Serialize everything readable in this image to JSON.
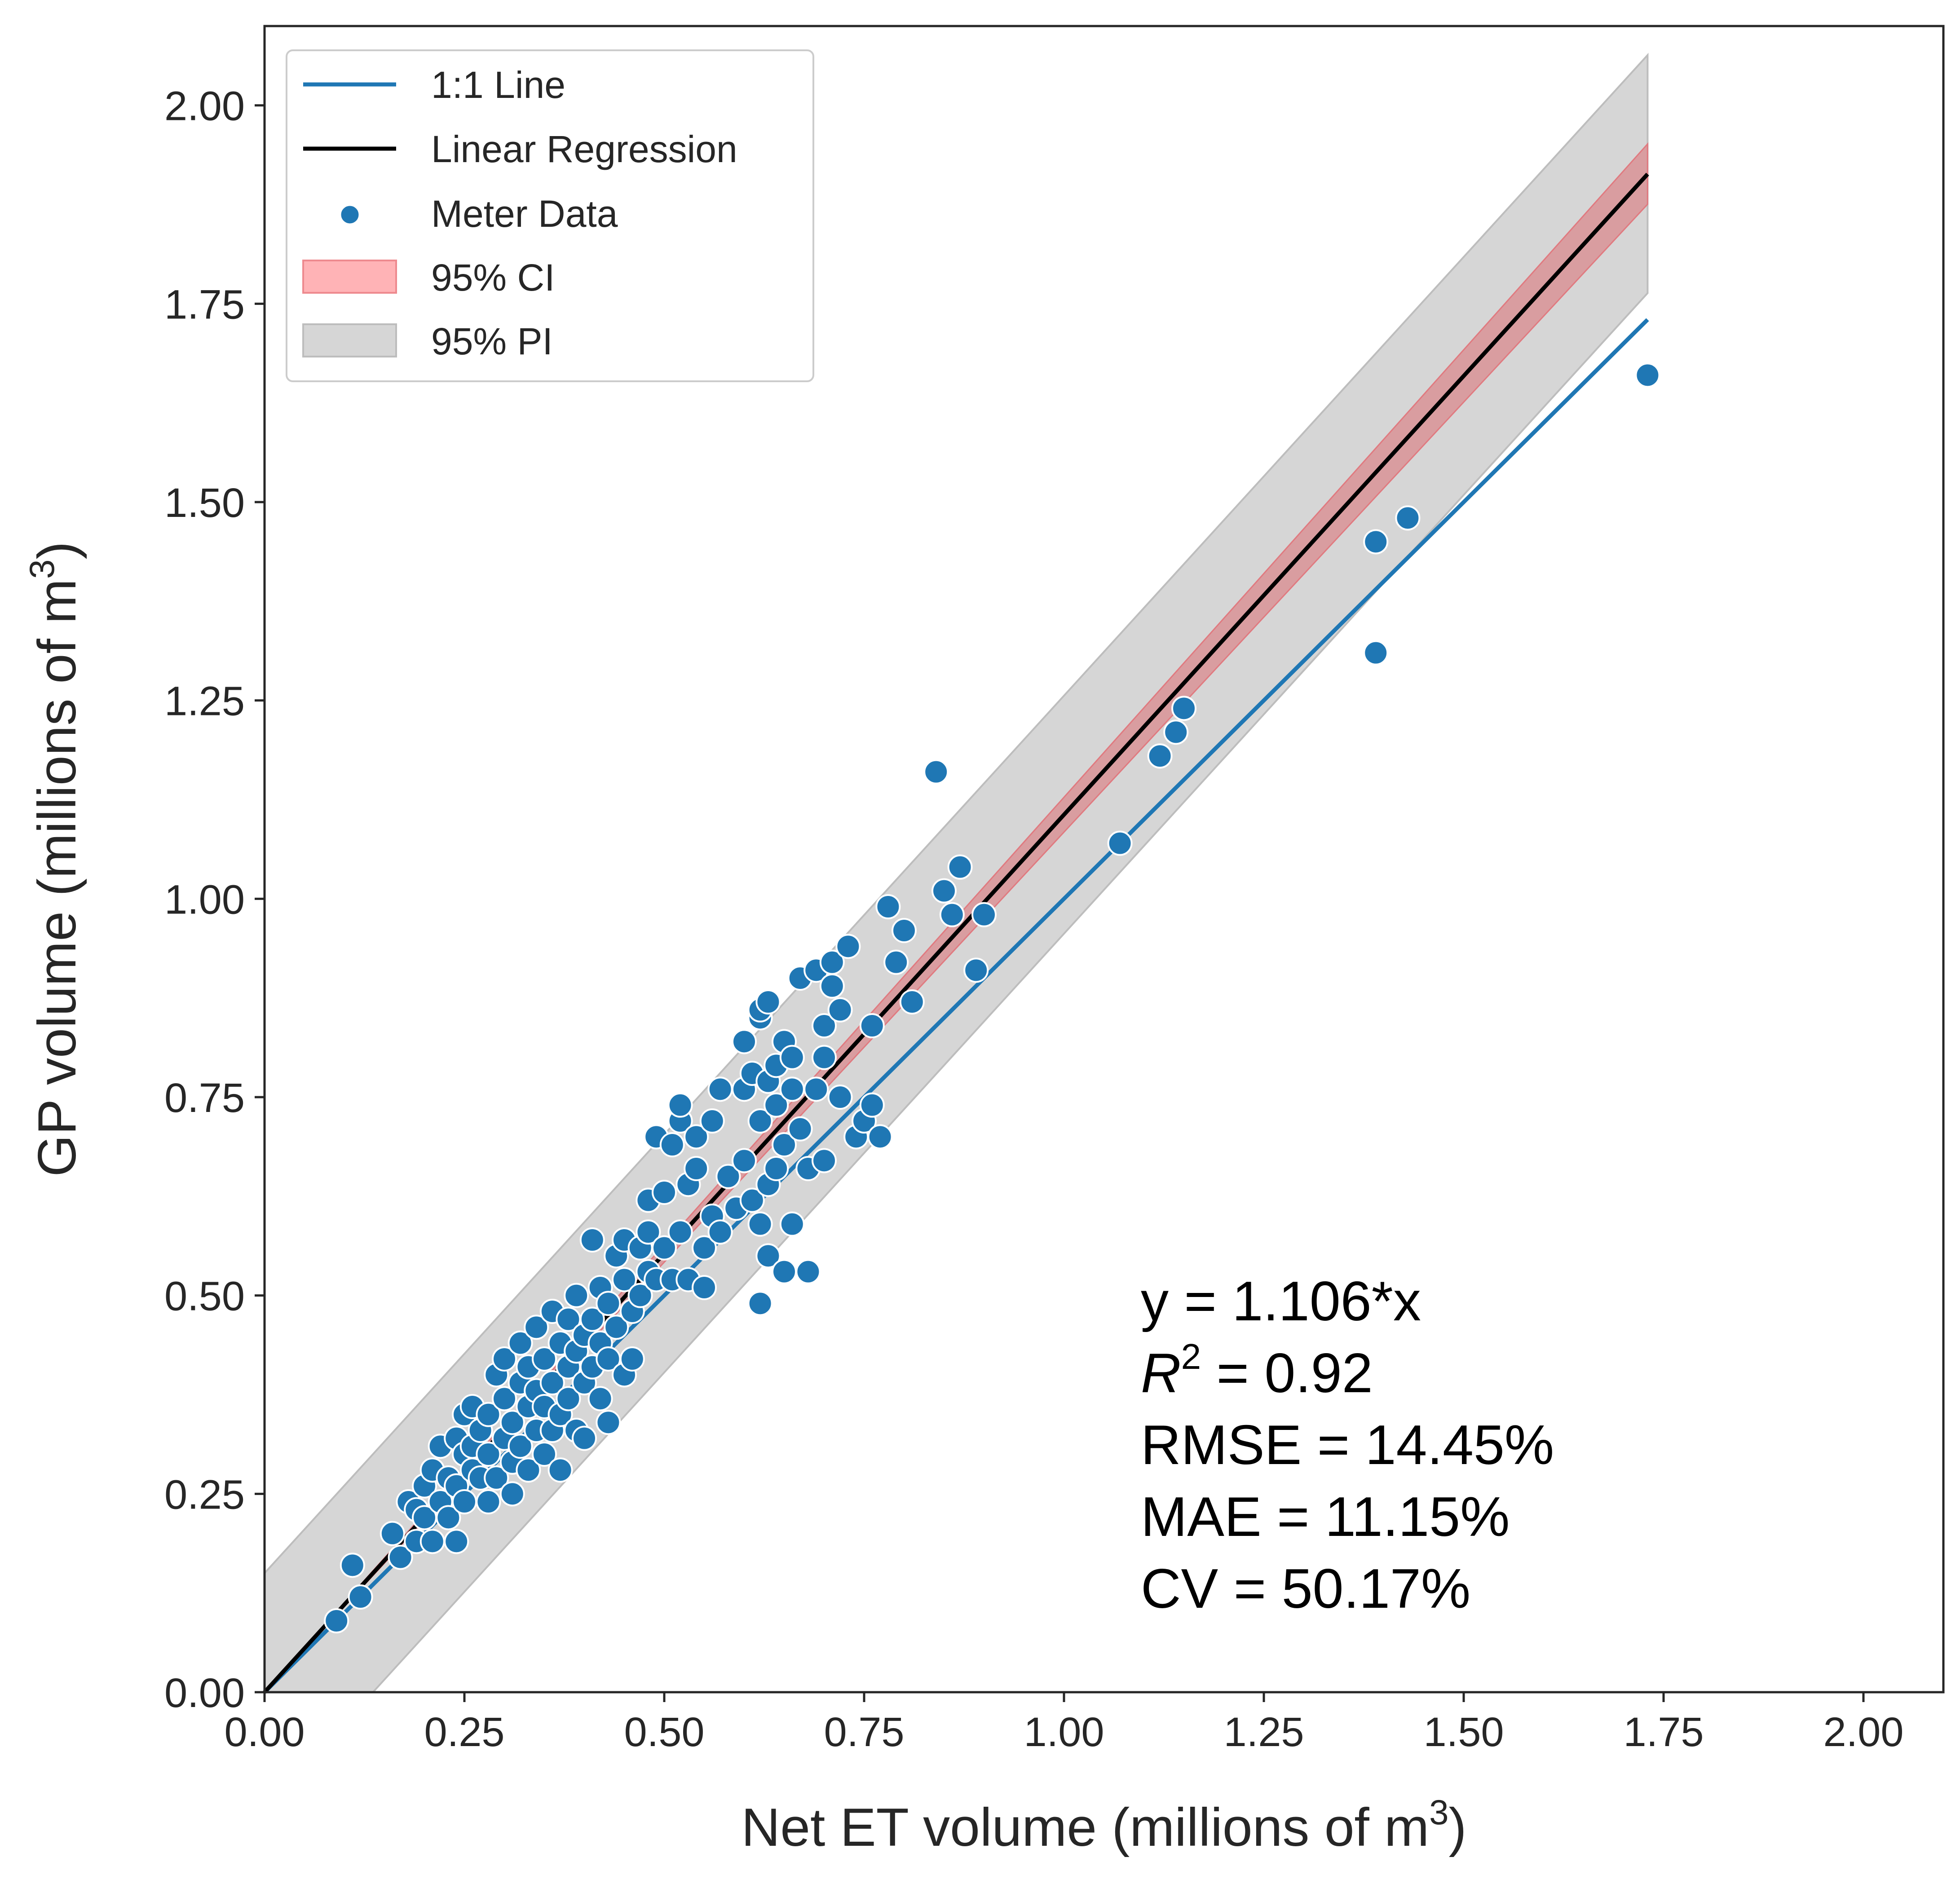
{
  "chart_data": {
    "type": "scatter",
    "xlabel": "Net ET volume (millions of m",
    "xlabel_sup": "3",
    "xlabel_end": ")",
    "ylabel": "GP volume (millions of m",
    "ylabel_sup": "3",
    "ylabel_end": ")",
    "xlim": [
      0,
      2.1
    ],
    "ylim": [
      0,
      2.1
    ],
    "xticks": [
      "0.00",
      "0.25",
      "0.50",
      "0.75",
      "1.00",
      "1.25",
      "1.50",
      "1.75",
      "2.00"
    ],
    "yticks": [
      "0.00",
      "0.25",
      "0.50",
      "0.75",
      "1.00",
      "1.25",
      "1.50",
      "1.75",
      "2.00"
    ],
    "grid": false,
    "legend_placement": "top-left",
    "legend": {
      "one_to_one": "1:1 Line",
      "regression": "Linear Regression",
      "meter": "Meter Data",
      "ci": "95% CI",
      "pi": "95% PI"
    },
    "colors": {
      "one_to_one": "#1f77b4",
      "regression": "#000000",
      "points": "#1f77b4",
      "ci": "#ff9da0",
      "pi": "#d0d0d0"
    },
    "one_to_one_line": {
      "x": [
        0,
        1.73
      ],
      "y": [
        0,
        1.73
      ]
    },
    "regression": {
      "slope": 1.106,
      "x": [
        0,
        1.73
      ]
    },
    "ci_halfwidth_at_max": 0.038,
    "pi_halfwidth": 0.15,
    "stats": {
      "equation": "y = 1.106*x",
      "r2_symbol": "R",
      "r2_sup": "2",
      "r2_value": " = 0.92",
      "rmse": "RMSE = 14.45%",
      "mae": "MAE = 11.15%",
      "cv": "CV = 50.17%"
    },
    "points": [
      [
        0.09,
        0.09
      ],
      [
        0.11,
        0.16
      ],
      [
        0.12,
        0.12
      ],
      [
        0.16,
        0.2
      ],
      [
        0.17,
        0.17
      ],
      [
        0.18,
        0.24
      ],
      [
        0.19,
        0.19
      ],
      [
        0.19,
        0.23
      ],
      [
        0.2,
        0.26
      ],
      [
        0.2,
        0.22
      ],
      [
        0.21,
        0.28
      ],
      [
        0.21,
        0.19
      ],
      [
        0.22,
        0.24
      ],
      [
        0.22,
        0.31
      ],
      [
        0.23,
        0.27
      ],
      [
        0.23,
        0.22
      ],
      [
        0.24,
        0.32
      ],
      [
        0.24,
        0.19
      ],
      [
        0.24,
        0.26
      ],
      [
        0.25,
        0.3
      ],
      [
        0.25,
        0.35
      ],
      [
        0.25,
        0.24
      ],
      [
        0.26,
        0.28
      ],
      [
        0.26,
        0.36
      ],
      [
        0.26,
        0.31
      ],
      [
        0.27,
        0.27
      ],
      [
        0.27,
        0.33
      ],
      [
        0.28,
        0.24
      ],
      [
        0.28,
        0.3
      ],
      [
        0.28,
        0.35
      ],
      [
        0.29,
        0.4
      ],
      [
        0.29,
        0.27
      ],
      [
        0.3,
        0.32
      ],
      [
        0.3,
        0.37
      ],
      [
        0.3,
        0.42
      ],
      [
        0.31,
        0.25
      ],
      [
        0.31,
        0.34
      ],
      [
        0.31,
        0.29
      ],
      [
        0.32,
        0.39
      ],
      [
        0.32,
        0.44
      ],
      [
        0.32,
        0.31
      ],
      [
        0.33,
        0.36
      ],
      [
        0.33,
        0.28
      ],
      [
        0.33,
        0.41
      ],
      [
        0.34,
        0.33
      ],
      [
        0.34,
        0.46
      ],
      [
        0.34,
        0.38
      ],
      [
        0.35,
        0.3
      ],
      [
        0.35,
        0.42
      ],
      [
        0.35,
        0.36
      ],
      [
        0.36,
        0.48
      ],
      [
        0.36,
        0.33
      ],
      [
        0.36,
        0.39
      ],
      [
        0.37,
        0.44
      ],
      [
        0.37,
        0.28
      ],
      [
        0.37,
        0.35
      ],
      [
        0.38,
        0.41
      ],
      [
        0.38,
        0.47
      ],
      [
        0.38,
        0.37
      ],
      [
        0.39,
        0.43
      ],
      [
        0.39,
        0.33
      ],
      [
        0.39,
        0.5
      ],
      [
        0.4,
        0.39
      ],
      [
        0.4,
        0.45
      ],
      [
        0.4,
        0.32
      ],
      [
        0.41,
        0.41
      ],
      [
        0.41,
        0.57
      ],
      [
        0.41,
        0.47
      ],
      [
        0.42,
        0.37
      ],
      [
        0.42,
        0.44
      ],
      [
        0.42,
        0.51
      ],
      [
        0.43,
        0.34
      ],
      [
        0.43,
        0.42
      ],
      [
        0.43,
        0.49
      ],
      [
        0.44,
        0.55
      ],
      [
        0.44,
        0.46
      ],
      [
        0.45,
        0.4
      ],
      [
        0.45,
        0.52
      ],
      [
        0.45,
        0.57
      ],
      [
        0.46,
        0.42
      ],
      [
        0.46,
        0.48
      ],
      [
        0.47,
        0.56
      ],
      [
        0.47,
        0.5
      ],
      [
        0.48,
        0.58
      ],
      [
        0.48,
        0.53
      ],
      [
        0.48,
        0.62
      ],
      [
        0.49,
        0.52
      ],
      [
        0.49,
        0.7
      ],
      [
        0.5,
        0.56
      ],
      [
        0.5,
        0.63
      ],
      [
        0.51,
        0.52
      ],
      [
        0.51,
        0.69
      ],
      [
        0.52,
        0.72
      ],
      [
        0.52,
        0.74
      ],
      [
        0.52,
        0.58
      ],
      [
        0.53,
        0.64
      ],
      [
        0.53,
        0.52
      ],
      [
        0.54,
        0.66
      ],
      [
        0.54,
        0.7
      ],
      [
        0.55,
        0.56
      ],
      [
        0.55,
        0.51
      ],
      [
        0.56,
        0.6
      ],
      [
        0.56,
        0.72
      ],
      [
        0.57,
        0.76
      ],
      [
        0.57,
        0.58
      ],
      [
        0.58,
        0.65
      ],
      [
        0.59,
        0.61
      ],
      [
        0.6,
        0.76
      ],
      [
        0.6,
        0.82
      ],
      [
        0.6,
        0.67
      ],
      [
        0.61,
        0.78
      ],
      [
        0.61,
        0.62
      ],
      [
        0.62,
        0.85
      ],
      [
        0.62,
        0.86
      ],
      [
        0.62,
        0.72
      ],
      [
        0.62,
        0.59
      ],
      [
        0.63,
        0.87
      ],
      [
        0.63,
        0.77
      ],
      [
        0.63,
        0.64
      ],
      [
        0.63,
        0.55
      ],
      [
        0.64,
        0.79
      ],
      [
        0.64,
        0.66
      ],
      [
        0.64,
        0.74
      ],
      [
        0.65,
        0.82
      ],
      [
        0.65,
        0.69
      ],
      [
        0.65,
        0.53
      ],
      [
        0.66,
        0.8
      ],
      [
        0.66,
        0.76
      ],
      [
        0.66,
        0.59
      ],
      [
        0.67,
        0.9
      ],
      [
        0.67,
        0.71
      ],
      [
        0.68,
        0.66
      ],
      [
        0.68,
        0.53
      ],
      [
        0.69,
        0.91
      ],
      [
        0.69,
        0.76
      ],
      [
        0.7,
        0.8
      ],
      [
        0.7,
        0.84
      ],
      [
        0.7,
        0.67
      ],
      [
        0.71,
        0.92
      ],
      [
        0.71,
        0.89
      ],
      [
        0.72,
        0.86
      ],
      [
        0.72,
        0.75
      ],
      [
        0.73,
        0.94
      ],
      [
        0.74,
        0.7
      ],
      [
        0.75,
        0.72
      ],
      [
        0.76,
        0.74
      ],
      [
        0.76,
        0.84
      ],
      [
        0.77,
        0.7
      ],
      [
        0.78,
        0.99
      ],
      [
        0.79,
        0.92
      ],
      [
        0.8,
        0.96
      ],
      [
        0.81,
        0.87
      ],
      [
        0.84,
        1.16
      ],
      [
        0.85,
        1.01
      ],
      [
        0.86,
        0.98
      ],
      [
        0.87,
        1.04
      ],
      [
        0.89,
        0.91
      ],
      [
        0.9,
        0.98
      ],
      [
        0.62,
        0.49
      ],
      [
        1.07,
        1.07
      ],
      [
        1.12,
        1.18
      ],
      [
        1.14,
        1.21
      ],
      [
        1.15,
        1.24
      ],
      [
        1.39,
        1.31
      ],
      [
        1.39,
        1.45
      ],
      [
        1.43,
        1.48
      ],
      [
        1.73,
        1.66
      ]
    ]
  }
}
